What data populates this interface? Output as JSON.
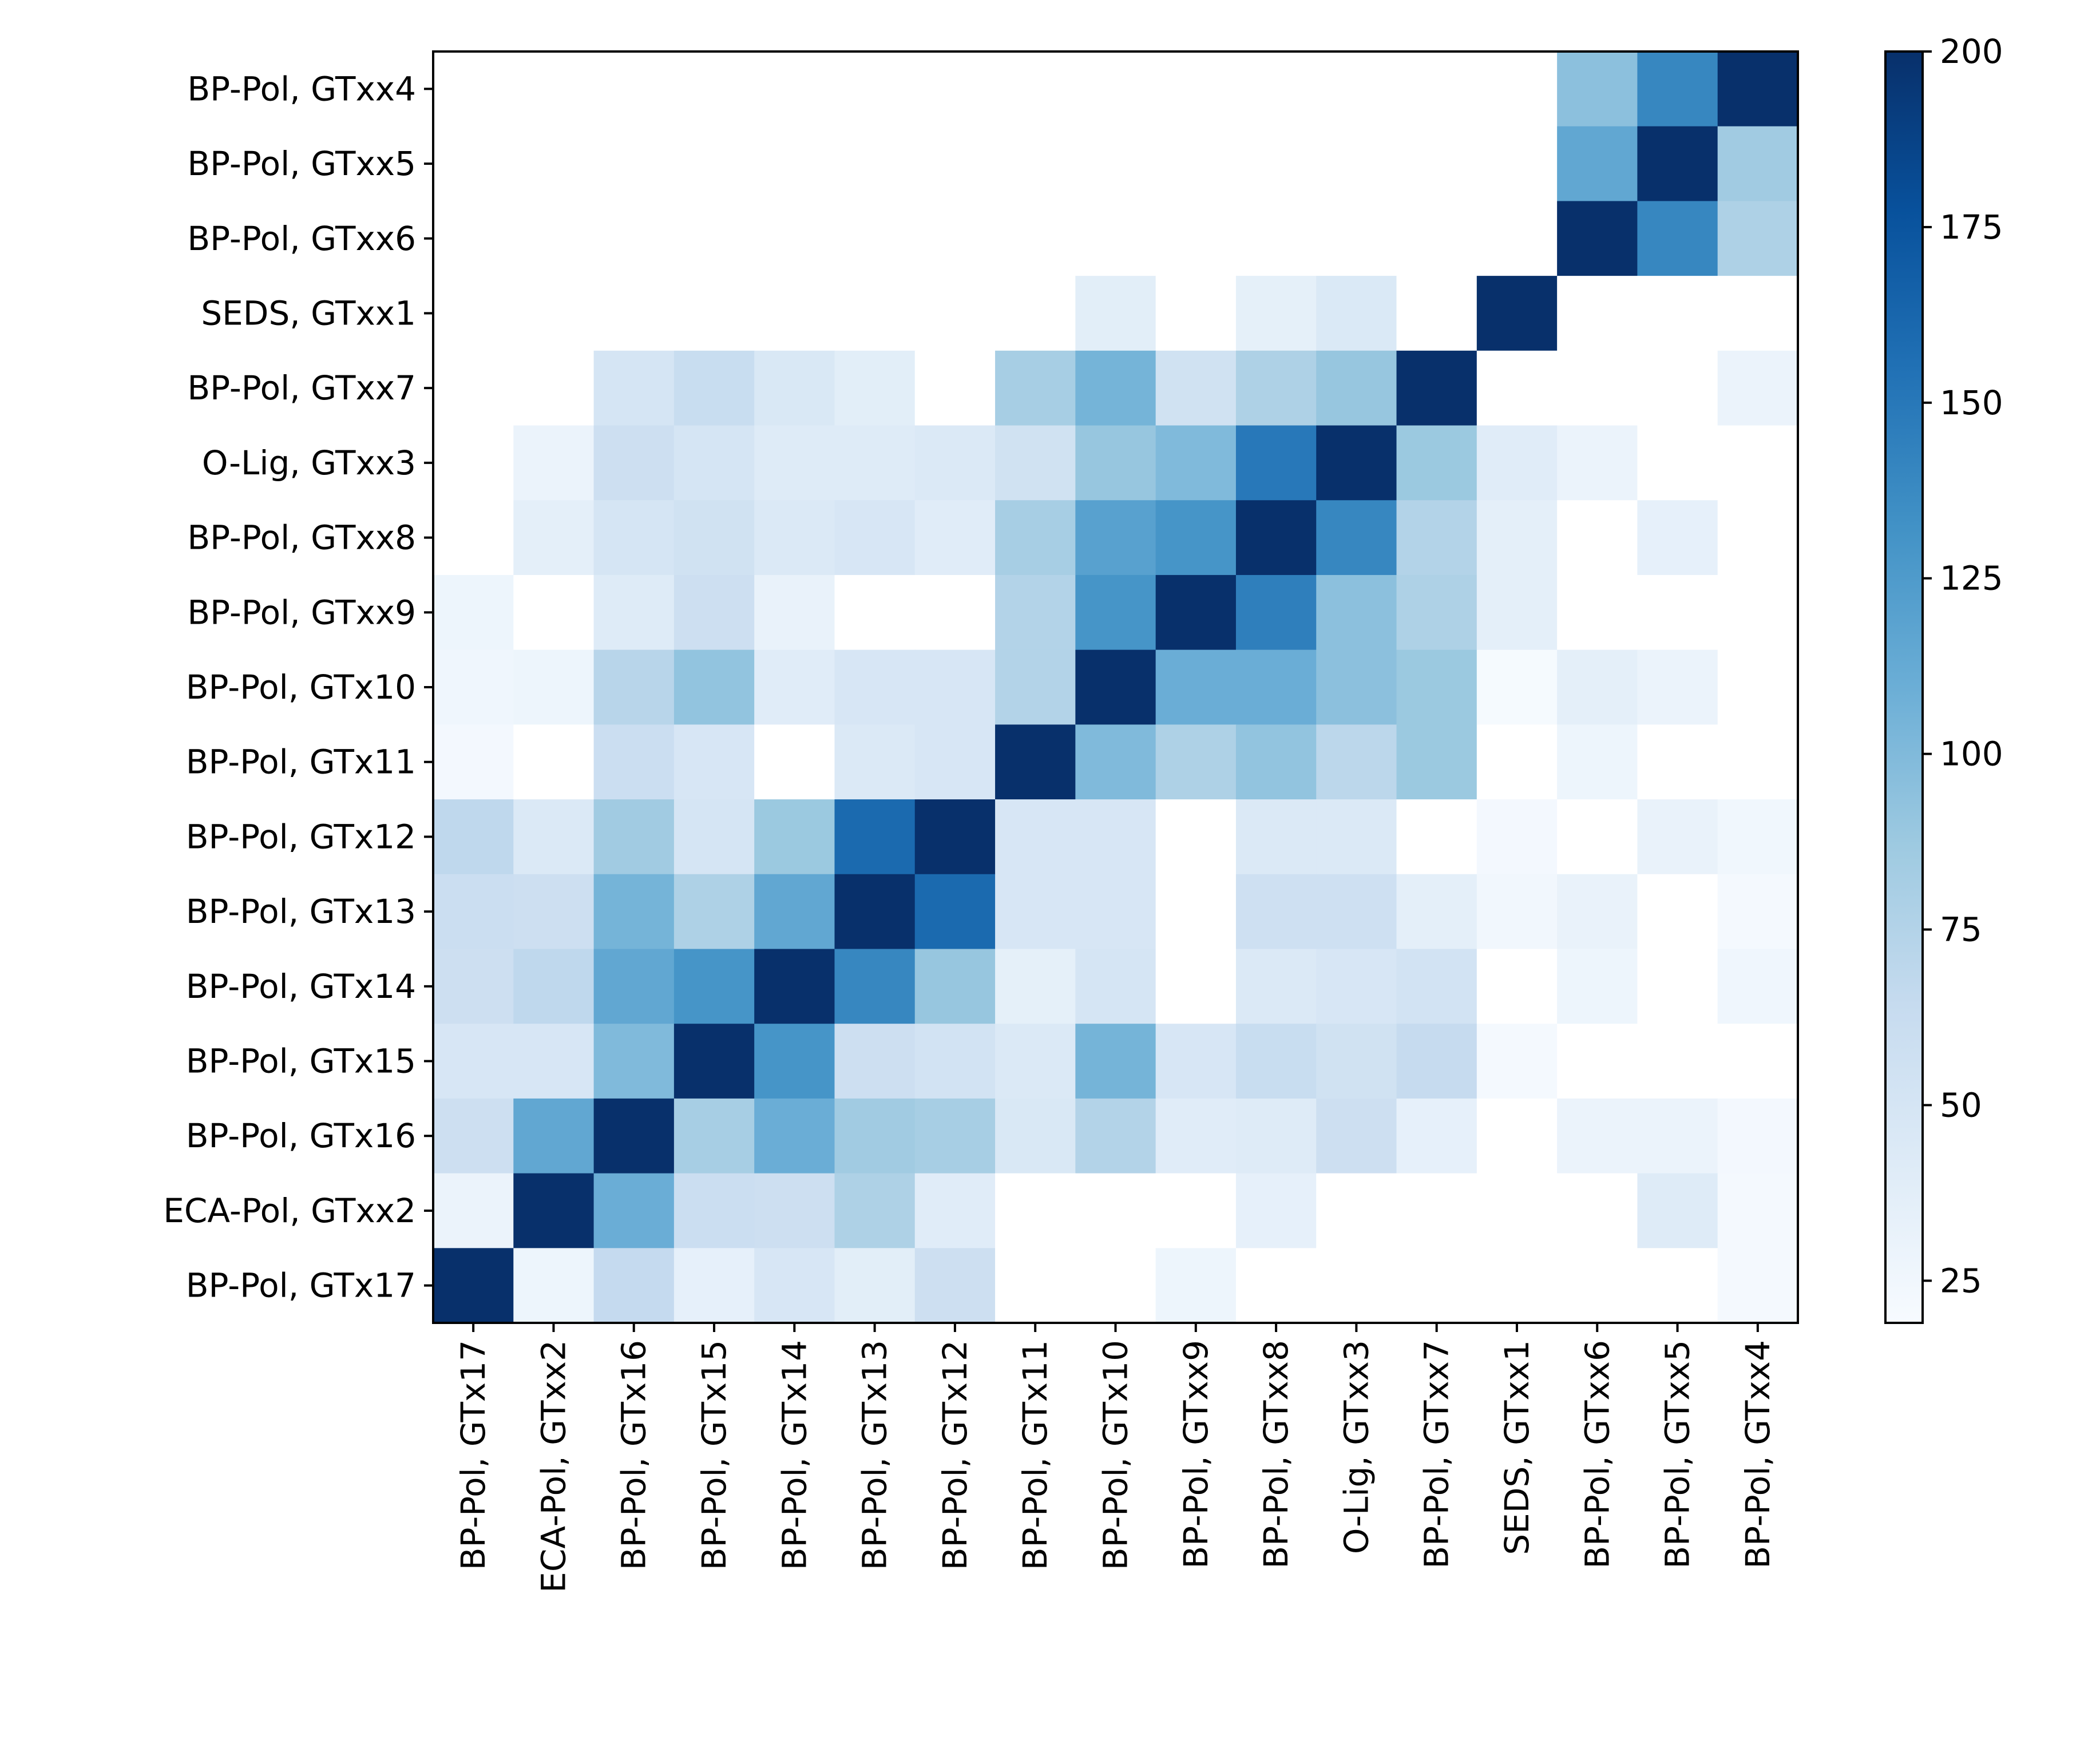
{
  "chart_data": {
    "type": "heatmap",
    "title": "",
    "xlabel": "",
    "ylabel": "",
    "x_categories": [
      "BP-Pol, GTx17",
      "ECA-Pol, GTxx2",
      "BP-Pol, GTx16",
      "BP-Pol, GTx15",
      "BP-Pol, GTx14",
      "BP-Pol, GTx13",
      "BP-Pol, GTx12",
      "BP-Pol, GTx11",
      "BP-Pol, GTx10",
      "BP-Pol, GTxx9",
      "BP-Pol, GTxx8",
      "O-Lig, GTxx3",
      "BP-Pol, GTxx7",
      "SEDS, GTxx1",
      "BP-Pol, GTxx6",
      "BP-Pol, GTxx5",
      "BP-Pol, GTxx4"
    ],
    "y_categories": [
      "BP-Pol, GTxx4",
      "BP-Pol, GTxx5",
      "BP-Pol, GTxx6",
      "SEDS, GTxx1",
      "BP-Pol, GTxx7",
      "O-Lig, GTxx3",
      "BP-Pol, GTxx8",
      "BP-Pol, GTxx9",
      "BP-Pol, GTx10",
      "BP-Pol, GTx11",
      "BP-Pol, GTx12",
      "BP-Pol, GTx13",
      "BP-Pol, GTx14",
      "BP-Pol, GTx15",
      "BP-Pol, GTx16",
      "ECA-Pol, GTxx2",
      "BP-Pol, GTx17"
    ],
    "values": [
      [
        null,
        null,
        null,
        null,
        null,
        null,
        null,
        null,
        null,
        null,
        null,
        null,
        null,
        null,
        95,
        140,
        200
      ],
      [
        null,
        null,
        null,
        null,
        null,
        null,
        null,
        null,
        null,
        null,
        null,
        null,
        null,
        null,
        115,
        200,
        85
      ],
      [
        null,
        null,
        null,
        null,
        null,
        null,
        null,
        null,
        null,
        null,
        null,
        null,
        null,
        null,
        200,
        140,
        78
      ],
      [
        null,
        null,
        null,
        null,
        null,
        null,
        null,
        null,
        38,
        null,
        35,
        45,
        null,
        200,
        null,
        null,
        null
      ],
      [
        null,
        null,
        50,
        62,
        46,
        38,
        null,
        82,
        105,
        55,
        78,
        90,
        200,
        null,
        null,
        null,
        30
      ],
      [
        null,
        30,
        58,
        50,
        42,
        42,
        44,
        55,
        90,
        100,
        150,
        200,
        88,
        40,
        30,
        null,
        null
      ],
      [
        null,
        36,
        50,
        55,
        44,
        48,
        40,
        82,
        120,
        130,
        200,
        140,
        75,
        36,
        null,
        34,
        null
      ],
      [
        28,
        null,
        42,
        58,
        32,
        null,
        null,
        75,
        130,
        200,
        145,
        95,
        78,
        36,
        null,
        null,
        null
      ],
      [
        26,
        28,
        72,
        92,
        40,
        48,
        48,
        75,
        200,
        110,
        110,
        95,
        88,
        21,
        36,
        30,
        null
      ],
      [
        23,
        null,
        60,
        48,
        null,
        44,
        48,
        200,
        100,
        78,
        92,
        70,
        88,
        null,
        28,
        null,
        null
      ],
      [
        68,
        44,
        85,
        50,
        88,
        160,
        200,
        48,
        48,
        null,
        44,
        44,
        null,
        23,
        null,
        32,
        25
      ],
      [
        60,
        58,
        105,
        78,
        115,
        200,
        160,
        48,
        48,
        null,
        57,
        57,
        36,
        24,
        32,
        null,
        22
      ],
      [
        58,
        68,
        115,
        130,
        200,
        140,
        90,
        35,
        50,
        null,
        44,
        48,
        53,
        null,
        28,
        null,
        26
      ],
      [
        48,
        48,
        100,
        200,
        130,
        58,
        53,
        44,
        105,
        48,
        62,
        55,
        64,
        22,
        null,
        null,
        null
      ],
      [
        58,
        115,
        200,
        82,
        110,
        85,
        82,
        46,
        75,
        40,
        42,
        58,
        34,
        null,
        30,
        30,
        23
      ],
      [
        30,
        200,
        110,
        60,
        58,
        78,
        40,
        null,
        null,
        null,
        34,
        null,
        null,
        null,
        null,
        42,
        22
      ],
      [
        200,
        28,
        65,
        34,
        48,
        38,
        58,
        null,
        null,
        28,
        null,
        null,
        null,
        null,
        null,
        null,
        22
      ]
    ],
    "color_scale": {
      "name": "Blues",
      "min": 19,
      "max": 200,
      "stops": [
        "#f7fbff",
        "#deebf7",
        "#c6dbef",
        "#9ecae1",
        "#6baed6",
        "#4292c6",
        "#2171b5",
        "#08519c",
        "#08306b"
      ]
    },
    "colorbar_ticks": [
      25,
      50,
      75,
      100,
      125,
      150,
      175,
      200
    ],
    "empty_cell_color": "#ffffff",
    "grid": false,
    "colorbar_position": "right"
  }
}
